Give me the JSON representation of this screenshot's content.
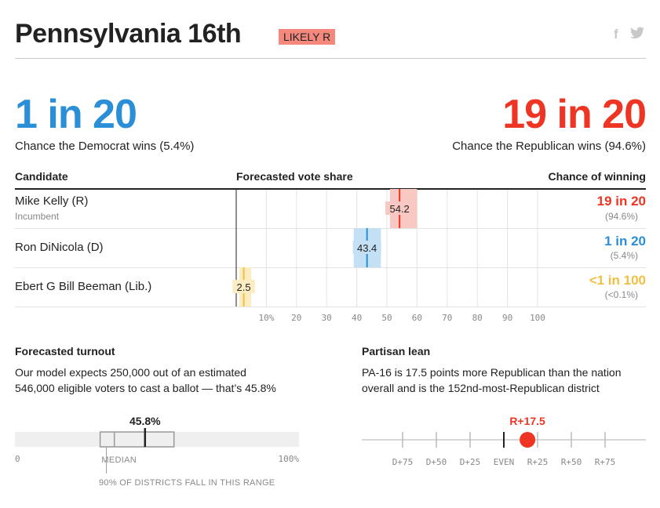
{
  "header": {
    "title": "Pennsylvania 16th",
    "rating": "LIKELY R",
    "rating_color": "#f4887d",
    "social": [
      {
        "icon": "facebook-icon",
        "glyph": "f"
      },
      {
        "icon": "twitter-icon",
        "glyph": "🐦"
      }
    ]
  },
  "odds": {
    "dem": {
      "big": "1 in 20",
      "caption": "Chance the Democrat wins (5.4%)",
      "color": "#2a8fd6"
    },
    "rep": {
      "big": "19 in 20",
      "caption": "Chance the Republican wins (94.6%)",
      "color": "#ee3524"
    }
  },
  "table": {
    "headers": {
      "candidate": "Candidate",
      "vote_share": "Forecasted vote share",
      "chance": "Chance of winning"
    }
  },
  "chart_data": [
    {
      "type": "bar",
      "title": "Forecasted vote share",
      "x_ticks": [
        10,
        20,
        30,
        40,
        50,
        60,
        70,
        80,
        90,
        100
      ],
      "x_tick_labels": [
        "10%",
        "20",
        "30",
        "40",
        "50",
        "60",
        "70",
        "80",
        "90",
        "100"
      ],
      "xlim": [
        0,
        100
      ],
      "candidates": [
        {
          "name": "Mike Kelly (R)",
          "note": "Incumbent",
          "share": 54.2,
          "share_label": "54.2",
          "range": [
            51,
            60
          ],
          "odds": "19 in 20",
          "odds_pct": "(94.6%)",
          "color": "#ee3524",
          "fill": "#f9c8c3"
        },
        {
          "name": "Ron DiNicola (D)",
          "note": "",
          "share": 43.4,
          "share_label": "43.4",
          "range": [
            39,
            48
          ],
          "odds": "1 in 20",
          "odds_pct": "(5.4%)",
          "color": "#2a8fd6",
          "fill": "#c3e0f4"
        },
        {
          "name": "Ebert G Bill Beeman (Lib.)",
          "note": "",
          "share": 2.5,
          "share_label": "2.5",
          "range": [
            1,
            5
          ],
          "odds": "<1 in 100",
          "odds_pct": "(<0.1%)",
          "color": "#f1c043",
          "fill": "#fbecc1"
        }
      ]
    },
    {
      "type": "bar",
      "title": "Forecasted turnout",
      "value": 45.8,
      "value_label": "45.8%",
      "xlim": [
        0,
        100
      ],
      "tick_labels": [
        "0",
        "100%"
      ],
      "median_label": "MEDIAN",
      "median": 35,
      "range": [
        30,
        56
      ],
      "range_label": "90% OF DISTRICTS FALL IN THIS RANGE"
    },
    {
      "type": "scatter",
      "title": "Partisan lean",
      "value": 17.5,
      "value_label": "R+17.5",
      "xlim": [
        -100,
        100
      ],
      "ticks": [
        -75,
        -50,
        -25,
        0,
        25,
        50,
        75
      ],
      "tick_labels": [
        "D+75",
        "D+50",
        "D+25",
        "EVEN",
        "R+25",
        "R+50",
        "R+75"
      ],
      "color": "#ee3524"
    }
  ],
  "turnout": {
    "title": "Forecasted turnout",
    "text_line1": "Our model expects 250,000 out of an estimated",
    "text_line2": "546,000 eligible voters to cast a ballot — that’s 45.8%"
  },
  "lean": {
    "title": "Partisan lean",
    "text_line1": "PA-16 is 17.5 points more Republican than the nation",
    "text_line2": "overall and is the 152nd-most-Republican district"
  }
}
